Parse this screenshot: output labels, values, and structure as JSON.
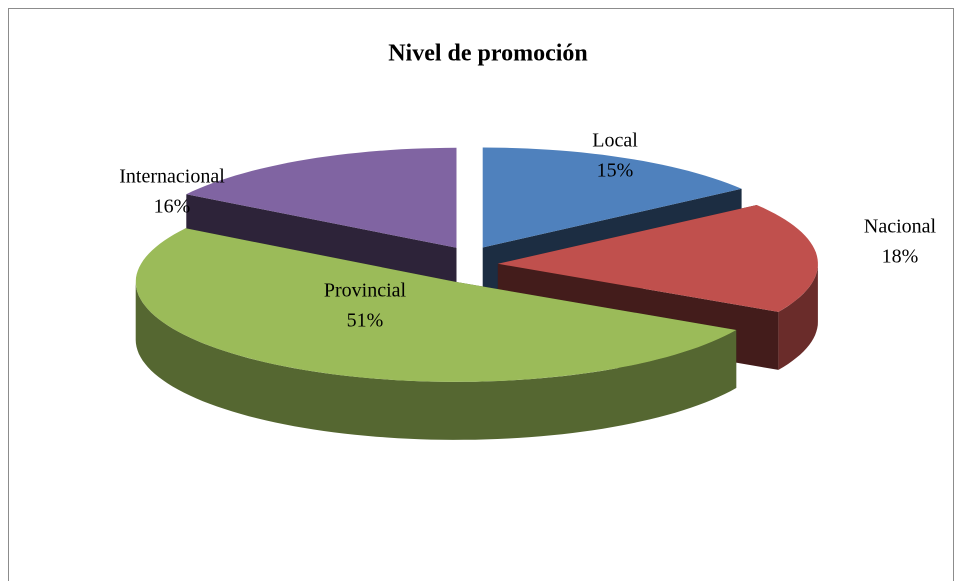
{
  "chart_data": {
    "type": "pie3d",
    "title": "Nivel de promoción",
    "categories": [
      "Local",
      "Nacional",
      "Provincial",
      "Internacional"
    ],
    "values": [
      15,
      18,
      51,
      16
    ],
    "value_labels": [
      "15%",
      "18%",
      "51%",
      "16%"
    ],
    "colors": [
      "#4f81bd",
      "#c0504d",
      "#9bbb59",
      "#8064a2"
    ]
  }
}
